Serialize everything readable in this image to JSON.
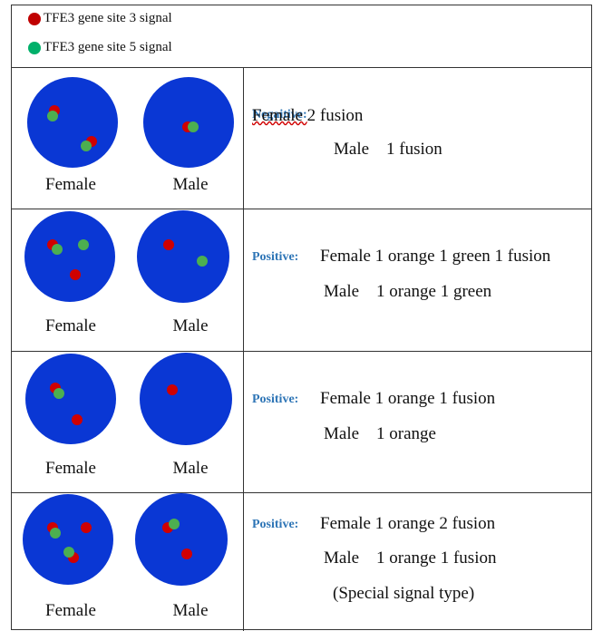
{
  "legend": [
    {
      "label": "TFE3 gene site 3 signal"
    },
    {
      "label": "TFE3 gene site 5 signal"
    }
  ],
  "rows": [
    {
      "left_labels": [
        "Female",
        "Male"
      ],
      "status": "Negaitive:",
      "lines": [
        "Female 2 fusion",
        "Male    1 fusion"
      ]
    },
    {
      "left_labels": [
        "Female",
        "Male"
      ],
      "status": "Positive:",
      "lines": [
        "Female 1 orange 1 green 1 fusion",
        "Male    1 orange 1 green"
      ]
    },
    {
      "left_labels": [
        "Female",
        "Male"
      ],
      "status": "Positive:",
      "lines": [
        "Female 1 orange 1 fusion",
        "Male    1 orange"
      ]
    },
    {
      "left_labels": [
        "Female",
        "Male"
      ],
      "status": "Positive:",
      "lines": [
        "Female 1 orange 2 fusion",
        "Male    1 orange 1 fusion",
        "(Special signal type)"
      ]
    }
  ]
}
